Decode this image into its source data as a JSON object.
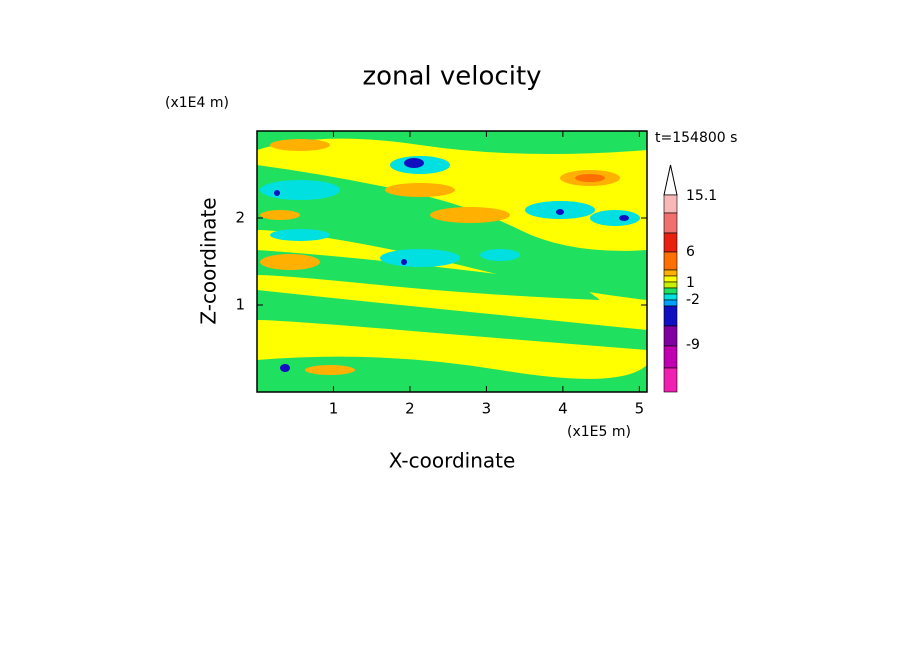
{
  "chart_data": {
    "type": "contour",
    "title": "zonal velocity",
    "xlabel": "X-coordinate",
    "ylabel": "Z-coordinate",
    "x_unit": "(x1E5 m)",
    "y_unit": "(x1E4 m)",
    "time_label": "t=154800 s",
    "xlim": [
      0,
      5.1
    ],
    "xticks": [
      1,
      2,
      3,
      4,
      5
    ],
    "ylim": [
      0,
      3
    ],
    "yticks": [
      1,
      2
    ],
    "colorbar_ticks": [
      15.1,
      6,
      1,
      -2,
      -9
    ],
    "colorbar_colors": [
      "#f8b8b8",
      "#f07070",
      "#e82010",
      "#ff7000",
      "#ffb000",
      "#ffff00",
      "#c8f000",
      "#20e060",
      "#00e0e0",
      "#00a0ff",
      "#1010c0",
      "#8000a0",
      "#c000b0",
      "#f020b0"
    ]
  }
}
